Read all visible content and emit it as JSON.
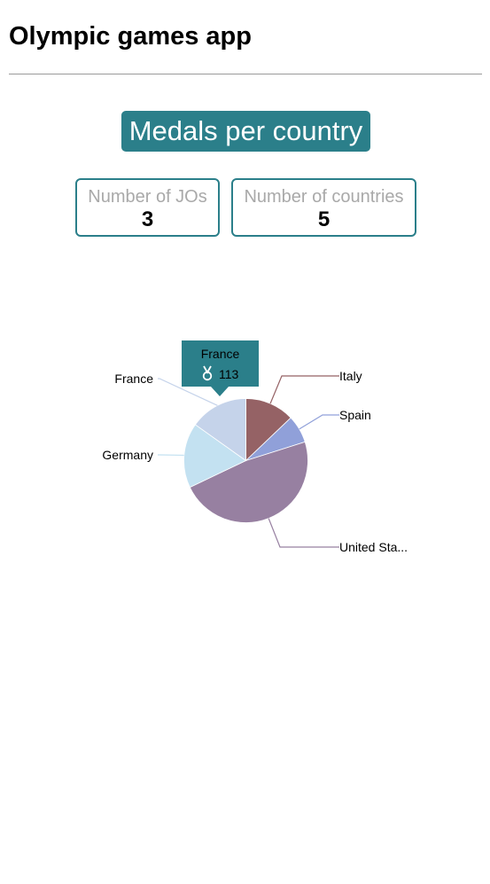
{
  "app": {
    "title": "Olympic games app"
  },
  "banner": {
    "title": "Medals per country"
  },
  "stats": {
    "jos_label": "Number of JOs",
    "jos_value": "3",
    "countries_label": "Number of countries",
    "countries_value": "5"
  },
  "tooltip": {
    "country": "France",
    "icon": "medal-icon",
    "value": "113"
  },
  "colors": {
    "accent": "#2b7f8a"
  },
  "chart_data": {
    "type": "pie",
    "categories": [
      "Italy",
      "Spain",
      "United States",
      "Germany",
      "France"
    ],
    "display_labels": [
      "Italy",
      "Spain",
      "United Sta...",
      "Germany",
      "France"
    ],
    "values": [
      96,
      54,
      356,
      126,
      113
    ],
    "colors": [
      "#956265",
      "#90a0d9",
      "#9780a1",
      "#c3e1f1",
      "#c5d3ea"
    ],
    "title": "",
    "legend": "none",
    "label_style": "outside labels with leader lines"
  }
}
